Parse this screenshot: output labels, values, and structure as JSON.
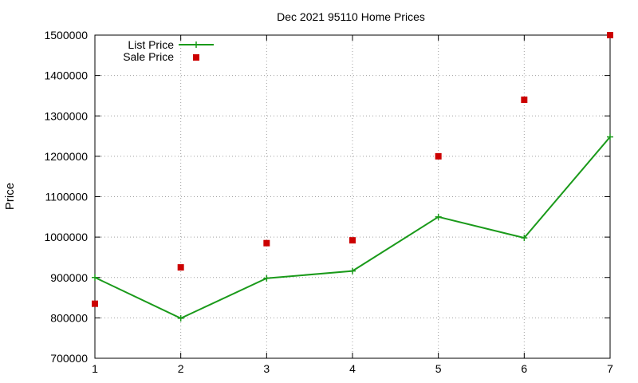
{
  "chart_data": {
    "type": "line",
    "title": "Dec 2021 95110 Home Prices",
    "xlabel": "",
    "ylabel": "Price",
    "x": [
      1,
      2,
      3,
      4,
      5,
      6,
      7
    ],
    "xlim": [
      1,
      7
    ],
    "ylim": [
      700000,
      1500000
    ],
    "xticks": [
      1,
      2,
      3,
      4,
      5,
      6,
      7
    ],
    "yticks": [
      700000,
      800000,
      900000,
      1000000,
      1100000,
      1200000,
      1300000,
      1400000,
      1500000
    ],
    "grid": true,
    "legend_position": "top-left",
    "series": [
      {
        "name": "List Price",
        "style": "line+cross",
        "color": "#1a9a1a",
        "values": [
          900000,
          799000,
          898000,
          916000,
          1050000,
          998000,
          1248000
        ]
      },
      {
        "name": "Sale Price",
        "style": "square",
        "color": "#cc0000",
        "values": [
          835000,
          925000,
          985000,
          992000,
          1200000,
          1340000,
          1500000
        ]
      }
    ]
  }
}
